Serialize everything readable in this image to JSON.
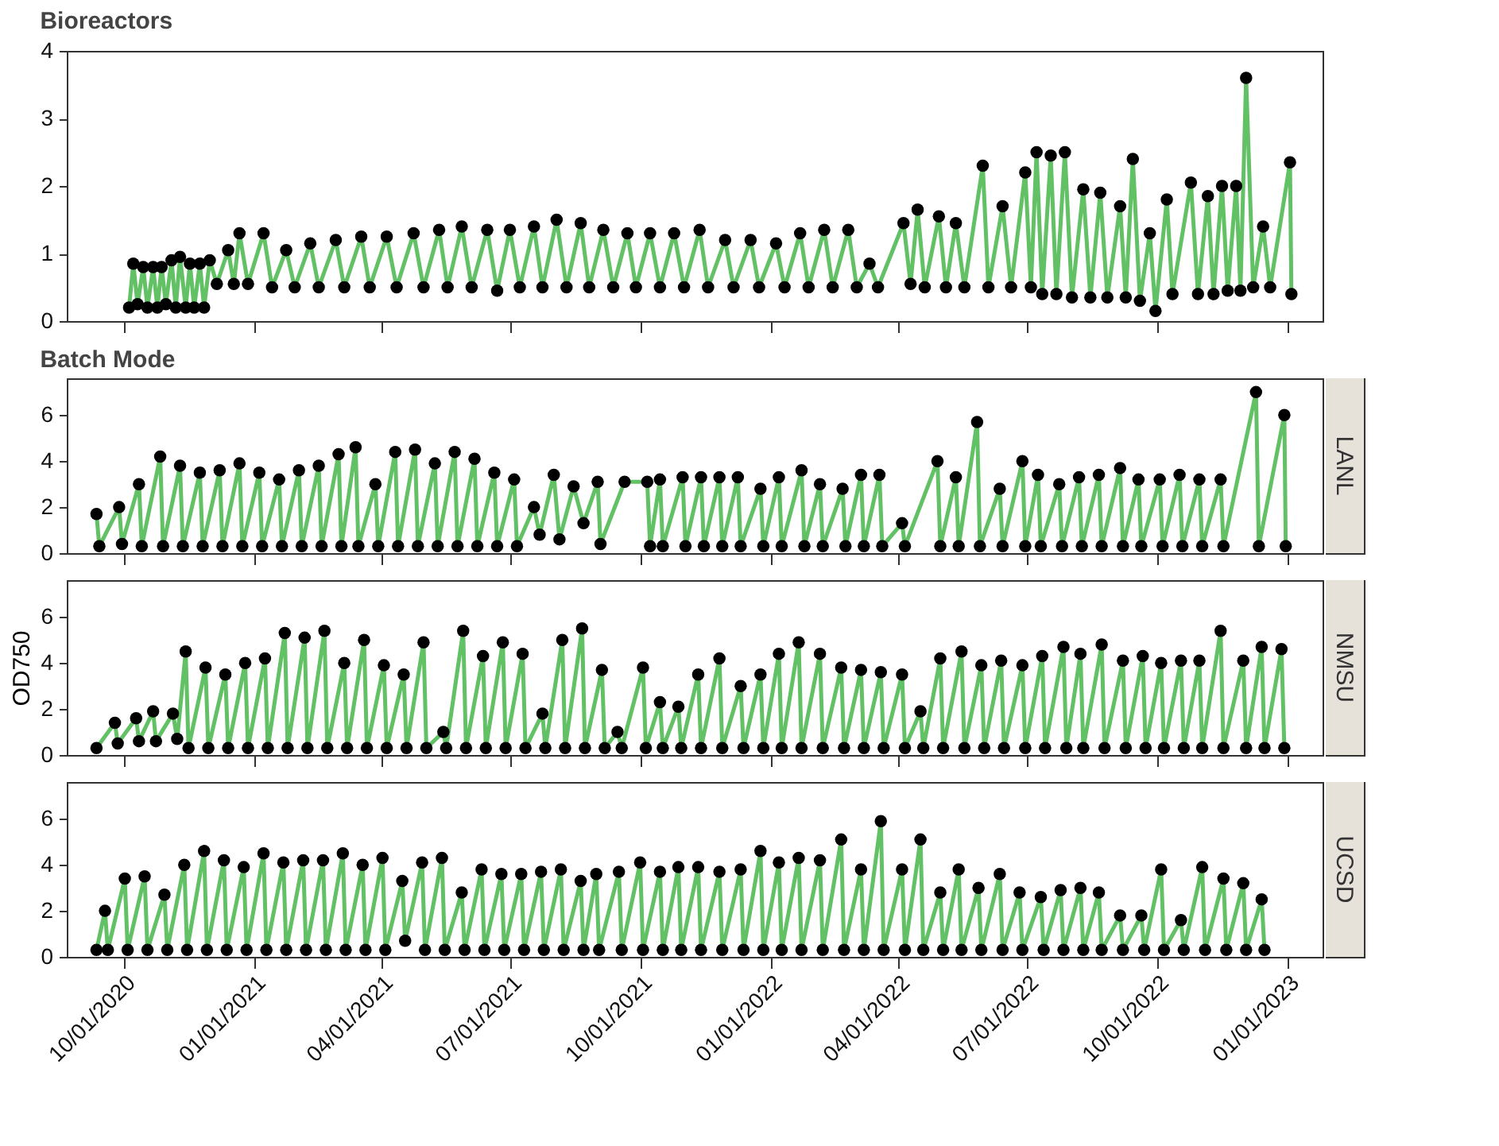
{
  "chart_data": [
    {
      "type": "line",
      "title": "Bioreactors",
      "marker": "circle",
      "tick_labels": "y",
      "xlim": [
        "2020-08-22",
        "2023-01-26"
      ],
      "ylim": [
        0,
        4
      ],
      "yticks": [
        0,
        1,
        2,
        3,
        4
      ],
      "xticks": [
        {
          "value": "2020-10-01",
          "label": null
        },
        {
          "value": "2021-01-01",
          "label": null
        },
        {
          "value": "2021-04-01",
          "label": null
        },
        {
          "value": "2021-07-01",
          "label": null
        },
        {
          "value": "2021-10-01",
          "label": null
        },
        {
          "value": "2022-01-01",
          "label": null
        },
        {
          "value": "2022-04-01",
          "label": null
        },
        {
          "value": "2022-07-01",
          "label": null
        },
        {
          "value": "2022-10-01",
          "label": null
        },
        {
          "value": "2023-01-01",
          "label": null
        }
      ],
      "series": [
        {
          "color": "#62c065",
          "x": [
            "2020-10-05",
            "2020-10-08",
            "2020-10-11",
            "2020-10-15",
            "2020-10-18",
            "2020-10-22",
            "2020-10-25",
            "2020-10-28",
            "2020-10-31",
            "2020-11-04",
            "2020-11-07",
            "2020-11-10",
            "2020-11-14",
            "2020-11-17",
            "2020-11-20",
            "2020-11-24",
            "2020-11-27",
            "2020-12-01",
            "2020-12-06",
            "2020-12-14",
            "2020-12-18",
            "2020-12-22",
            "2020-12-28",
            "2021-01-08",
            "2021-01-14",
            "2021-01-24",
            "2021-01-30",
            "2021-02-10",
            "2021-02-16",
            "2021-02-28",
            "2021-03-06",
            "2021-03-18",
            "2021-03-24",
            "2021-04-05",
            "2021-04-12",
            "2021-04-24",
            "2021-05-01",
            "2021-05-12",
            "2021-05-18",
            "2021-05-28",
            "2021-06-04",
            "2021-06-15",
            "2021-06-22",
            "2021-07-01",
            "2021-07-08",
            "2021-07-18",
            "2021-07-24",
            "2021-08-03",
            "2021-08-10",
            "2021-08-20",
            "2021-08-26",
            "2021-09-05",
            "2021-09-12",
            "2021-09-22",
            "2021-09-28",
            "2021-10-08",
            "2021-10-15",
            "2021-10-25",
            "2021-11-01",
            "2021-11-12",
            "2021-11-18",
            "2021-11-30",
            "2021-12-06",
            "2021-12-18",
            "2021-12-24",
            "2022-01-05",
            "2022-01-11",
            "2022-01-22",
            "2022-01-28",
            "2022-02-08",
            "2022-02-14",
            "2022-02-25",
            "2022-03-03",
            "2022-03-12",
            "2022-03-18",
            "2022-04-05",
            "2022-04-10",
            "2022-04-15",
            "2022-04-20",
            "2022-04-30",
            "2022-05-05",
            "2022-05-12",
            "2022-05-18",
            "2022-05-31",
            "2022-06-04",
            "2022-06-14",
            "2022-06-20",
            "2022-06-30",
            "2022-07-04",
            "2022-07-08",
            "2022-07-12",
            "2022-07-18",
            "2022-07-22",
            "2022-07-28",
            "2022-08-02",
            "2022-08-10",
            "2022-08-15",
            "2022-08-22",
            "2022-08-27",
            "2022-09-05",
            "2022-09-09",
            "2022-09-14",
            "2022-09-19",
            "2022-09-26",
            "2022-09-30",
            "2022-10-08",
            "2022-10-12",
            "2022-10-25",
            "2022-10-30",
            "2022-11-06",
            "2022-11-10",
            "2022-11-16",
            "2022-11-20",
            "2022-11-26",
            "2022-11-29",
            "2022-12-03",
            "2022-12-08",
            "2022-12-15",
            "2022-12-20",
            "2023-01-03",
            "2023-01-04"
          ],
          "values": [
            0.2,
            0.85,
            0.25,
            0.8,
            0.2,
            0.8,
            0.2,
            0.8,
            0.25,
            0.9,
            0.2,
            0.95,
            0.2,
            0.85,
            0.2,
            0.85,
            0.2,
            0.9,
            0.55,
            1.05,
            0.55,
            1.3,
            0.55,
            1.3,
            0.5,
            1.05,
            0.5,
            1.15,
            0.5,
            1.2,
            0.5,
            1.25,
            0.5,
            1.25,
            0.5,
            1.3,
            0.5,
            1.35,
            0.5,
            1.4,
            0.5,
            1.35,
            0.45,
            1.35,
            0.5,
            1.4,
            0.5,
            1.5,
            0.5,
            1.45,
            0.5,
            1.35,
            0.5,
            1.3,
            0.5,
            1.3,
            0.5,
            1.3,
            0.5,
            1.35,
            0.5,
            1.2,
            0.5,
            1.2,
            0.5,
            1.15,
            0.5,
            1.3,
            0.5,
            1.35,
            0.5,
            1.35,
            0.5,
            0.85,
            0.5,
            1.45,
            0.55,
            1.65,
            0.5,
            1.55,
            0.5,
            1.45,
            0.5,
            2.3,
            0.5,
            1.7,
            0.5,
            2.2,
            0.5,
            2.5,
            0.4,
            2.45,
            0.4,
            2.5,
            0.35,
            1.95,
            0.35,
            1.9,
            0.35,
            1.7,
            0.35,
            2.4,
            0.3,
            1.3,
            0.15,
            1.8,
            0.4,
            2.05,
            0.4,
            1.85,
            0.4,
            2.0,
            0.45,
            2.0,
            0.45,
            3.6,
            0.5,
            1.4,
            0.5,
            2.35,
            0.4
          ]
        }
      ]
    },
    {
      "type": "line",
      "title": "Batch Mode",
      "marker": "circle",
      "tick_labels": "y",
      "xlim": [
        "2020-08-22",
        "2023-01-26"
      ],
      "ylim": [
        0,
        7.6
      ],
      "yticks": [
        0,
        2,
        4,
        6
      ],
      "xticks": [
        {
          "value": "2020-10-01",
          "label": null
        },
        {
          "value": "2021-01-01",
          "label": null
        },
        {
          "value": "2021-04-01",
          "label": null
        },
        {
          "value": "2021-07-01",
          "label": null
        },
        {
          "value": "2021-10-01",
          "label": null
        },
        {
          "value": "2022-01-01",
          "label": null
        },
        {
          "value": "2022-04-01",
          "label": null
        },
        {
          "value": "2022-07-01",
          "label": null
        },
        {
          "value": "2022-10-01",
          "label": null
        },
        {
          "value": "2023-01-01",
          "label": null
        }
      ],
      "series": [
        {
          "name": "LANL",
          "color": "#62c065",
          "x": [
            "2020-09-12",
            "2020-09-14",
            "2020-09-28",
            "2020-09-30",
            "2020-10-12",
            "2020-10-14",
            "2020-10-27",
            "2020-10-29",
            "2020-11-10",
            "2020-11-12",
            "2020-11-24",
            "2020-11-26",
            "2020-12-08",
            "2020-12-10",
            "2020-12-22",
            "2020-12-24",
            "2021-01-05",
            "2021-01-07",
            "2021-01-19",
            "2021-01-21",
            "2021-02-02",
            "2021-02-04",
            "2021-02-16",
            "2021-02-18",
            "2021-03-02",
            "2021-03-04",
            "2021-03-14",
            "2021-03-16",
            "2021-03-28",
            "2021-03-30",
            "2021-04-11",
            "2021-04-13",
            "2021-04-25",
            "2021-04-27",
            "2021-05-09",
            "2021-05-11",
            "2021-05-23",
            "2021-05-25",
            "2021-06-06",
            "2021-06-08",
            "2021-06-20",
            "2021-06-22",
            "2021-07-04",
            "2021-07-06",
            "2021-07-18",
            "2021-07-22",
            "2021-08-01",
            "2021-08-05",
            "2021-08-15",
            "2021-08-22",
            "2021-09-01",
            "2021-09-03",
            "2021-09-20",
            "2021-10-06",
            "2021-10-08",
            "2021-10-15",
            "2021-10-17",
            "2021-10-31",
            "2021-11-02",
            "2021-11-13",
            "2021-11-15",
            "2021-11-26",
            "2021-11-28",
            "2021-12-09",
            "2021-12-11",
            "2021-12-25",
            "2021-12-27",
            "2022-01-07",
            "2022-01-09",
            "2022-01-23",
            "2022-01-25",
            "2022-02-05",
            "2022-02-07",
            "2022-02-21",
            "2022-02-23",
            "2022-03-06",
            "2022-03-08",
            "2022-03-19",
            "2022-03-21",
            "2022-04-04",
            "2022-04-06",
            "2022-04-29",
            "2022-05-01",
            "2022-05-12",
            "2022-05-14",
            "2022-05-27",
            "2022-05-29",
            "2022-06-12",
            "2022-06-14",
            "2022-06-28",
            "2022-06-30",
            "2022-07-09",
            "2022-07-11",
            "2022-07-24",
            "2022-07-26",
            "2022-08-07",
            "2022-08-09",
            "2022-08-21",
            "2022-08-23",
            "2022-09-05",
            "2022-09-07",
            "2022-09-18",
            "2022-09-20",
            "2022-10-03",
            "2022-10-05",
            "2022-10-17",
            "2022-10-19",
            "2022-10-31",
            "2022-11-02",
            "2022-11-15",
            "2022-11-17",
            "2022-12-10",
            "2022-12-12",
            "2022-12-30",
            "2022-12-31"
          ],
          "values": [
            1.7,
            0.3,
            2.0,
            0.4,
            3.0,
            0.3,
            4.2,
            0.3,
            3.8,
            0.3,
            3.5,
            0.3,
            3.6,
            0.3,
            3.9,
            0.3,
            3.5,
            0.3,
            3.2,
            0.3,
            3.6,
            0.3,
            3.8,
            0.3,
            4.3,
            0.3,
            4.6,
            0.3,
            3.0,
            0.3,
            4.4,
            0.3,
            4.5,
            0.3,
            3.9,
            0.3,
            4.4,
            0.3,
            4.1,
            0.3,
            3.5,
            0.3,
            3.2,
            0.3,
            2.0,
            0.8,
            3.4,
            0.6,
            2.9,
            1.3,
            3.1,
            0.4,
            3.1,
            3.1,
            0.3,
            3.2,
            0.3,
            3.3,
            0.3,
            3.3,
            0.3,
            3.3,
            0.3,
            3.3,
            0.3,
            2.8,
            0.3,
            3.3,
            0.3,
            3.6,
            0.3,
            3.0,
            0.3,
            2.8,
            0.3,
            3.4,
            0.3,
            3.4,
            0.3,
            1.3,
            0.3,
            4.0,
            0.3,
            3.3,
            0.3,
            5.7,
            0.3,
            2.8,
            0.3,
            4.0,
            0.3,
            3.4,
            0.3,
            3.0,
            0.3,
            3.3,
            0.3,
            3.4,
            0.3,
            3.7,
            0.3,
            3.2,
            0.3,
            3.2,
            0.3,
            3.4,
            0.3,
            3.2,
            0.3,
            3.2,
            0.3,
            7.0,
            0.3,
            6.0,
            0.3
          ]
        }
      ]
    },
    {
      "type": "line",
      "ylabel": "OD750",
      "marker": "circle",
      "tick_labels": "y",
      "xlim": [
        "2020-08-22",
        "2023-01-26"
      ],
      "ylim": [
        0,
        7.6
      ],
      "yticks": [
        0,
        2,
        4,
        6
      ],
      "xticks": [
        {
          "value": "2020-10-01",
          "label": null
        },
        {
          "value": "2021-01-01",
          "label": null
        },
        {
          "value": "2021-04-01",
          "label": null
        },
        {
          "value": "2021-07-01",
          "label": null
        },
        {
          "value": "2021-10-01",
          "label": null
        },
        {
          "value": "2022-01-01",
          "label": null
        },
        {
          "value": "2022-04-01",
          "label": null
        },
        {
          "value": "2022-07-01",
          "label": null
        },
        {
          "value": "2022-10-01",
          "label": null
        },
        {
          "value": "2023-01-01",
          "label": null
        }
      ],
      "series": [
        {
          "name": "NMSU",
          "color": "#62c065",
          "x": [
            "2020-09-12",
            "2020-09-25",
            "2020-09-27",
            "2020-10-10",
            "2020-10-12",
            "2020-10-22",
            "2020-10-24",
            "2020-11-05",
            "2020-11-08",
            "2020-11-14",
            "2020-11-16",
            "2020-11-28",
            "2020-11-30",
            "2020-12-12",
            "2020-12-14",
            "2020-12-26",
            "2020-12-28",
            "2021-01-09",
            "2021-01-11",
            "2021-01-23",
            "2021-01-25",
            "2021-02-06",
            "2021-02-08",
            "2021-02-20",
            "2021-02-22",
            "2021-03-06",
            "2021-03-08",
            "2021-03-20",
            "2021-03-22",
            "2021-04-03",
            "2021-04-05",
            "2021-04-17",
            "2021-04-19",
            "2021-05-01",
            "2021-05-03",
            "2021-05-15",
            "2021-05-17",
            "2021-05-29",
            "2021-05-31",
            "2021-06-12",
            "2021-06-14",
            "2021-06-26",
            "2021-06-28",
            "2021-07-10",
            "2021-07-12",
            "2021-07-24",
            "2021-07-26",
            "2021-08-07",
            "2021-08-09",
            "2021-08-21",
            "2021-08-23",
            "2021-09-04",
            "2021-09-06",
            "2021-09-15",
            "2021-09-18",
            "2021-10-03",
            "2021-10-05",
            "2021-10-15",
            "2021-10-17",
            "2021-10-28",
            "2021-10-30",
            "2021-11-11",
            "2021-11-13",
            "2021-11-26",
            "2021-11-28",
            "2021-12-11",
            "2021-12-13",
            "2021-12-25",
            "2021-12-27",
            "2022-01-07",
            "2022-01-09",
            "2022-01-21",
            "2022-01-23",
            "2022-02-05",
            "2022-02-07",
            "2022-02-20",
            "2022-02-22",
            "2022-03-06",
            "2022-03-08",
            "2022-03-20",
            "2022-03-22",
            "2022-04-04",
            "2022-04-06",
            "2022-04-17",
            "2022-04-19",
            "2022-05-01",
            "2022-05-03",
            "2022-05-16",
            "2022-05-18",
            "2022-05-30",
            "2022-06-01",
            "2022-06-13",
            "2022-06-15",
            "2022-06-28",
            "2022-06-30",
            "2022-07-12",
            "2022-07-14",
            "2022-07-27",
            "2022-07-29",
            "2022-08-08",
            "2022-08-10",
            "2022-08-23",
            "2022-08-25",
            "2022-09-07",
            "2022-09-09",
            "2022-09-21",
            "2022-09-23",
            "2022-10-04",
            "2022-10-06",
            "2022-10-18",
            "2022-10-20",
            "2022-10-31",
            "2022-11-02",
            "2022-11-15",
            "2022-11-17",
            "2022-12-01",
            "2022-12-03",
            "2022-12-14",
            "2022-12-16",
            "2022-12-28",
            "2022-12-30"
          ],
          "values": [
            0.3,
            1.4,
            0.5,
            1.6,
            0.6,
            1.9,
            0.6,
            1.8,
            0.7,
            4.5,
            0.3,
            3.8,
            0.3,
            3.5,
            0.3,
            4.0,
            0.3,
            4.2,
            0.3,
            5.3,
            0.3,
            5.1,
            0.3,
            5.4,
            0.3,
            4.0,
            0.3,
            5.0,
            0.3,
            3.9,
            0.3,
            3.5,
            0.3,
            4.9,
            0.3,
            1.0,
            0.3,
            5.4,
            0.3,
            4.3,
            0.3,
            4.9,
            0.3,
            4.4,
            0.3,
            1.8,
            0.3,
            5.0,
            0.3,
            5.5,
            0.3,
            3.7,
            0.3,
            1.0,
            0.3,
            3.8,
            0.3,
            2.3,
            0.3,
            2.1,
            0.3,
            3.5,
            0.3,
            4.2,
            0.3,
            3.0,
            0.3,
            3.5,
            0.3,
            4.4,
            0.3,
            4.9,
            0.3,
            4.4,
            0.3,
            3.8,
            0.3,
            3.7,
            0.3,
            3.6,
            0.3,
            3.5,
            0.3,
            1.9,
            0.3,
            4.2,
            0.3,
            4.5,
            0.3,
            3.9,
            0.3,
            4.1,
            0.3,
            3.9,
            0.3,
            4.3,
            0.3,
            4.7,
            0.3,
            4.4,
            0.3,
            4.8,
            0.3,
            4.1,
            0.3,
            4.3,
            0.3,
            4.0,
            0.3,
            4.1,
            0.3,
            4.1,
            0.3,
            5.4,
            0.3,
            4.1,
            0.3,
            4.7,
            0.3,
            4.6,
            0.3
          ]
        }
      ]
    },
    {
      "type": "line",
      "marker": "circle",
      "xlim": [
        "2020-08-22",
        "2023-01-26"
      ],
      "ylim": [
        0,
        7.6
      ],
      "yticks": [
        0,
        2,
        4,
        6
      ],
      "xticks": [
        {
          "value": "2020-10-01",
          "label": "10/01/2020"
        },
        {
          "value": "2021-01-01",
          "label": "01/01/2021"
        },
        {
          "value": "2021-04-01",
          "label": "04/01/2021"
        },
        {
          "value": "2021-07-01",
          "label": "07/01/2021"
        },
        {
          "value": "2021-10-01",
          "label": "10/01/2021"
        },
        {
          "value": "2022-01-01",
          "label": "01/01/2022"
        },
        {
          "value": "2022-04-01",
          "label": "04/01/2022"
        },
        {
          "value": "2022-07-01",
          "label": "07/01/2022"
        },
        {
          "value": "2022-10-01",
          "label": "10/01/2022"
        },
        {
          "value": "2023-01-01",
          "label": "01/01/2023"
        }
      ],
      "series": [
        {
          "name": "UCSD",
          "color": "#62c065",
          "x": [
            "2020-09-12",
            "2020-09-18",
            "2020-09-20",
            "2020-10-02",
            "2020-10-04",
            "2020-10-16",
            "2020-10-18",
            "2020-10-30",
            "2020-11-01",
            "2020-11-13",
            "2020-11-15",
            "2020-11-27",
            "2020-11-29",
            "2020-12-11",
            "2020-12-13",
            "2020-12-25",
            "2020-12-27",
            "2021-01-08",
            "2021-01-10",
            "2021-01-22",
            "2021-01-24",
            "2021-02-05",
            "2021-02-07",
            "2021-02-19",
            "2021-02-21",
            "2021-03-05",
            "2021-03-07",
            "2021-03-19",
            "2021-03-21",
            "2021-04-02",
            "2021-04-04",
            "2021-04-16",
            "2021-04-18",
            "2021-04-30",
            "2021-05-02",
            "2021-05-14",
            "2021-05-16",
            "2021-05-28",
            "2021-05-30",
            "2021-06-11",
            "2021-06-13",
            "2021-06-25",
            "2021-06-27",
            "2021-07-09",
            "2021-07-11",
            "2021-07-23",
            "2021-07-25",
            "2021-08-06",
            "2021-08-08",
            "2021-08-20",
            "2021-08-22",
            "2021-08-31",
            "2021-09-02",
            "2021-09-16",
            "2021-09-18",
            "2021-10-01",
            "2021-10-03",
            "2021-10-15",
            "2021-10-17",
            "2021-10-28",
            "2021-10-30",
            "2021-11-11",
            "2021-11-13",
            "2021-11-26",
            "2021-11-28",
            "2021-12-11",
            "2021-12-13",
            "2021-12-25",
            "2021-12-27",
            "2022-01-07",
            "2022-01-09",
            "2022-01-21",
            "2022-01-23",
            "2022-02-05",
            "2022-02-07",
            "2022-02-20",
            "2022-02-22",
            "2022-03-06",
            "2022-03-08",
            "2022-03-20",
            "2022-03-22",
            "2022-04-04",
            "2022-04-06",
            "2022-04-17",
            "2022-04-19",
            "2022-05-01",
            "2022-05-03",
            "2022-05-14",
            "2022-05-16",
            "2022-05-28",
            "2022-05-30",
            "2022-06-12",
            "2022-06-14",
            "2022-06-26",
            "2022-06-28",
            "2022-07-11",
            "2022-07-13",
            "2022-07-25",
            "2022-07-27",
            "2022-08-08",
            "2022-08-10",
            "2022-08-21",
            "2022-08-23",
            "2022-09-05",
            "2022-09-07",
            "2022-09-20",
            "2022-09-22",
            "2022-10-04",
            "2022-10-06",
            "2022-10-18",
            "2022-10-20",
            "2022-11-02",
            "2022-11-04",
            "2022-11-17",
            "2022-11-19",
            "2022-12-01",
            "2022-12-03",
            "2022-12-14",
            "2022-12-16"
          ],
          "values": [
            0.3,
            2.0,
            0.3,
            3.4,
            0.3,
            3.5,
            0.3,
            2.7,
            0.3,
            4.0,
            0.3,
            4.6,
            0.3,
            4.2,
            0.3,
            3.9,
            0.3,
            4.5,
            0.3,
            4.1,
            0.3,
            4.2,
            0.3,
            4.2,
            0.3,
            4.5,
            0.3,
            4.0,
            0.3,
            4.3,
            0.3,
            3.3,
            0.7,
            4.1,
            0.3,
            4.3,
            0.3,
            2.8,
            0.3,
            3.8,
            0.3,
            3.6,
            0.3,
            3.6,
            0.3,
            3.7,
            0.3,
            3.8,
            0.3,
            3.3,
            0.3,
            3.6,
            0.3,
            3.7,
            0.3,
            4.1,
            0.3,
            3.7,
            0.3,
            3.9,
            0.3,
            3.9,
            0.3,
            3.7,
            0.3,
            3.8,
            0.3,
            4.6,
            0.3,
            4.1,
            0.3,
            4.3,
            0.3,
            4.2,
            0.3,
            5.1,
            0.3,
            3.8,
            0.3,
            5.9,
            0.3,
            3.8,
            0.3,
            5.1,
            0.3,
            2.8,
            0.3,
            3.8,
            0.3,
            3.0,
            0.3,
            3.6,
            0.3,
            2.8,
            0.3,
            2.6,
            0.3,
            2.9,
            0.3,
            3.0,
            0.3,
            2.8,
            0.3,
            1.8,
            0.3,
            1.8,
            0.3,
            3.8,
            0.3,
            1.6,
            0.3,
            3.9,
            0.3,
            3.4,
            0.3,
            3.2,
            0.3,
            2.5,
            0.3
          ]
        }
      ]
    }
  ]
}
